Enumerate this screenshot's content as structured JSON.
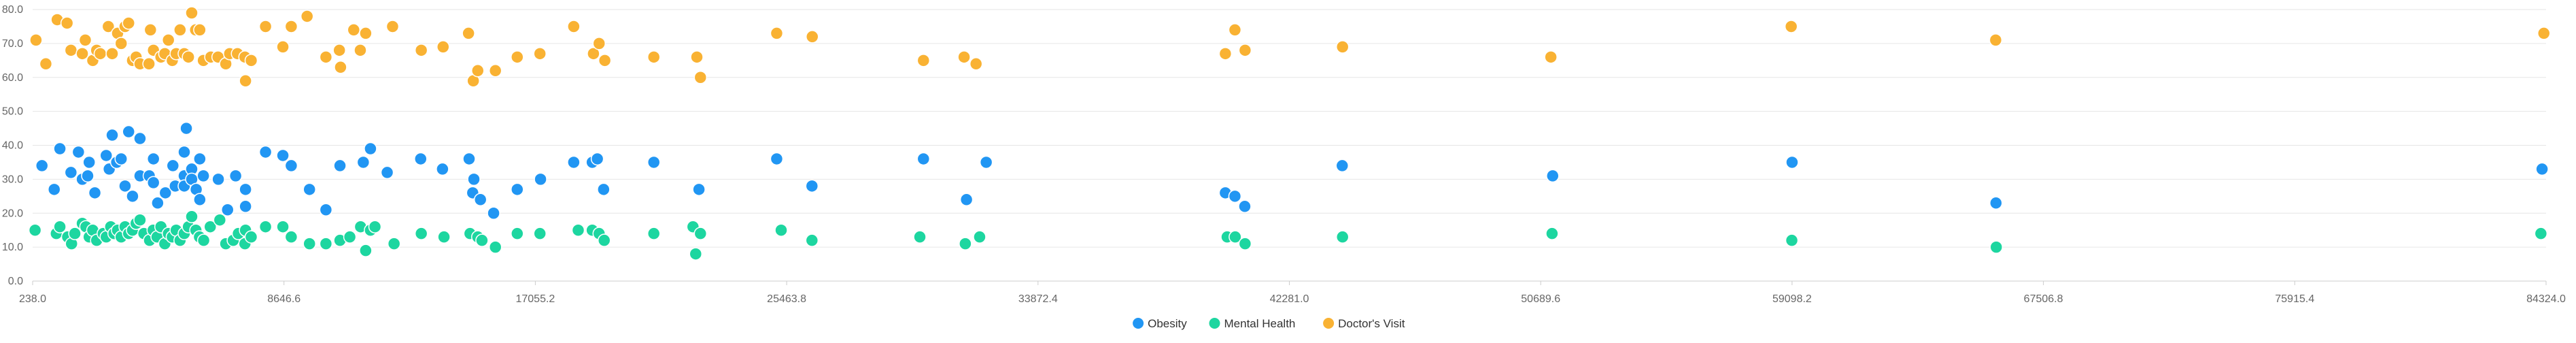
{
  "chart_data": {
    "type": "scatter",
    "title": "",
    "xlabel": "",
    "ylabel": "",
    "xlim": [
      238.0,
      84324.0
    ],
    "ylim": [
      0.0,
      80.0
    ],
    "x_ticks": [
      "238.0",
      "8646.6",
      "17055.2",
      "25463.8",
      "33872.4",
      "42281.0",
      "50689.6",
      "59098.2",
      "67506.8",
      "75915.4",
      "84324.0"
    ],
    "y_ticks": [
      "0.0",
      "10.0",
      "20.0",
      "30.0",
      "40.0",
      "50.0",
      "60.0",
      "70.0",
      "80.0"
    ],
    "grid": "horizontal",
    "legend_position": "bottom-center",
    "series": [
      {
        "name": "Obesity",
        "color": "#2196f3",
        "points": [
          [
            550,
            34
          ],
          [
            960,
            27
          ],
          [
            1150,
            39
          ],
          [
            1520,
            32
          ],
          [
            1900,
            30
          ],
          [
            1770,
            38
          ],
          [
            2130,
            35
          ],
          [
            2080,
            31
          ],
          [
            2320,
            26
          ],
          [
            2700,
            37
          ],
          [
            2800,
            33
          ],
          [
            3050,
            35
          ],
          [
            2900,
            43
          ],
          [
            3200,
            36
          ],
          [
            3330,
            28
          ],
          [
            3450,
            44
          ],
          [
            3580,
            25
          ],
          [
            3830,
            42
          ],
          [
            3830,
            31
          ],
          [
            4140,
            31
          ],
          [
            4280,
            36
          ],
          [
            4280,
            29
          ],
          [
            4420,
            23
          ],
          [
            4680,
            26
          ],
          [
            4930,
            34
          ],
          [
            5010,
            28
          ],
          [
            5310,
            38
          ],
          [
            5310,
            31
          ],
          [
            5310,
            28
          ],
          [
            5380,
            45
          ],
          [
            5560,
            33
          ],
          [
            5560,
            30
          ],
          [
            5710,
            27
          ],
          [
            5830,
            36
          ],
          [
            5950,
            31
          ],
          [
            5830,
            24
          ],
          [
            6450,
            30
          ],
          [
            6760,
            21
          ],
          [
            7030,
            31
          ],
          [
            7360,
            22
          ],
          [
            7360,
            27
          ],
          [
            8030,
            38
          ],
          [
            8610,
            37
          ],
          [
            8890,
            34
          ],
          [
            9500,
            27
          ],
          [
            10050,
            21
          ],
          [
            10520,
            34
          ],
          [
            11300,
            35
          ],
          [
            11540,
            39
          ],
          [
            12100,
            32
          ],
          [
            13220,
            36
          ],
          [
            13950,
            33
          ],
          [
            14840,
            36
          ],
          [
            14960,
            26
          ],
          [
            15000,
            30
          ],
          [
            15220,
            24
          ],
          [
            15660,
            20
          ],
          [
            16450,
            27
          ],
          [
            17230,
            30
          ],
          [
            18340,
            35
          ],
          [
            18960,
            35
          ],
          [
            19130,
            36
          ],
          [
            19340,
            27
          ],
          [
            21020,
            35
          ],
          [
            22530,
            27
          ],
          [
            25130,
            36
          ],
          [
            26310,
            28
          ],
          [
            30040,
            36
          ],
          [
            31480,
            24
          ],
          [
            32140,
            35
          ],
          [
            40140,
            26
          ],
          [
            40460,
            25
          ],
          [
            40790,
            22
          ],
          [
            44050,
            34
          ],
          [
            51090,
            31
          ],
          [
            59100,
            35
          ],
          [
            65920,
            23
          ],
          [
            84190,
            33
          ]
        ]
      },
      {
        "name": "Mental Health",
        "color": "#1dd6a0",
        "points": [
          [
            320,
            15
          ],
          [
            1030,
            14
          ],
          [
            1150,
            16
          ],
          [
            1410,
            13
          ],
          [
            1540,
            11
          ],
          [
            1650,
            14
          ],
          [
            1900,
            17
          ],
          [
            2020,
            16
          ],
          [
            2130,
            13
          ],
          [
            2250,
            15
          ],
          [
            2380,
            12
          ],
          [
            2600,
            14
          ],
          [
            2700,
            13
          ],
          [
            2850,
            16
          ],
          [
            2960,
            14
          ],
          [
            3080,
            15
          ],
          [
            3200,
            13
          ],
          [
            3330,
            16
          ],
          [
            3450,
            14
          ],
          [
            3580,
            15
          ],
          [
            3700,
            17
          ],
          [
            3830,
            18
          ],
          [
            3960,
            14
          ],
          [
            4150,
            12
          ],
          [
            4270,
            15
          ],
          [
            4400,
            13
          ],
          [
            4530,
            16
          ],
          [
            4660,
            11
          ],
          [
            4780,
            14
          ],
          [
            4910,
            13
          ],
          [
            5040,
            15
          ],
          [
            5170,
            12
          ],
          [
            5310,
            14
          ],
          [
            5450,
            16
          ],
          [
            5560,
            19
          ],
          [
            5700,
            15
          ],
          [
            5820,
            13
          ],
          [
            5960,
            12
          ],
          [
            6180,
            16
          ],
          [
            6500,
            18
          ],
          [
            6700,
            11
          ],
          [
            6950,
            12
          ],
          [
            7120,
            14
          ],
          [
            7340,
            11
          ],
          [
            7360,
            15
          ],
          [
            7550,
            13
          ],
          [
            8030,
            16
          ],
          [
            8610,
            16
          ],
          [
            8890,
            13
          ],
          [
            9500,
            11
          ],
          [
            10050,
            11
          ],
          [
            10520,
            12
          ],
          [
            10850,
            13
          ],
          [
            11210,
            16
          ],
          [
            11380,
            9
          ],
          [
            11540,
            15
          ],
          [
            11690,
            16
          ],
          [
            12330,
            11
          ],
          [
            13240,
            14
          ],
          [
            14000,
            13
          ],
          [
            14870,
            14
          ],
          [
            15130,
            13
          ],
          [
            15270,
            12
          ],
          [
            15720,
            10
          ],
          [
            16450,
            14
          ],
          [
            17210,
            14
          ],
          [
            18490,
            15
          ],
          [
            18960,
            15
          ],
          [
            19190,
            14
          ],
          [
            19360,
            12
          ],
          [
            21020,
            14
          ],
          [
            22330,
            16
          ],
          [
            22420,
            8
          ],
          [
            22580,
            14
          ],
          [
            25280,
            15
          ],
          [
            26310,
            12
          ],
          [
            29920,
            13
          ],
          [
            31440,
            11
          ],
          [
            31920,
            13
          ],
          [
            40200,
            13
          ],
          [
            40470,
            13
          ],
          [
            40800,
            11
          ],
          [
            44060,
            13
          ],
          [
            51070,
            14
          ],
          [
            59090,
            12
          ],
          [
            65930,
            10
          ],
          [
            84150,
            14
          ]
        ]
      },
      {
        "name": "Doctor's Visit",
        "color": "#f9b233",
        "points": [
          [
            350,
            71
          ],
          [
            680,
            64
          ],
          [
            1060,
            77
          ],
          [
            1390,
            76
          ],
          [
            1520,
            68
          ],
          [
            1900,
            67
          ],
          [
            2000,
            71
          ],
          [
            2250,
            65
          ],
          [
            2380,
            68
          ],
          [
            2500,
            67
          ],
          [
            2770,
            75
          ],
          [
            2900,
            67
          ],
          [
            3080,
            73
          ],
          [
            3200,
            70
          ],
          [
            3330,
            75
          ],
          [
            3450,
            76
          ],
          [
            3580,
            65
          ],
          [
            3700,
            66
          ],
          [
            3830,
            64
          ],
          [
            4130,
            64
          ],
          [
            4180,
            74
          ],
          [
            4280,
            68
          ],
          [
            4530,
            66
          ],
          [
            4660,
            67
          ],
          [
            4780,
            71
          ],
          [
            4910,
            65
          ],
          [
            5040,
            67
          ],
          [
            5170,
            74
          ],
          [
            5310,
            67
          ],
          [
            5450,
            66
          ],
          [
            5560,
            79
          ],
          [
            5690,
            74
          ],
          [
            5830,
            74
          ],
          [
            5950,
            65
          ],
          [
            6200,
            66
          ],
          [
            6440,
            66
          ],
          [
            6700,
            64
          ],
          [
            6830,
            67
          ],
          [
            7090,
            67
          ],
          [
            7340,
            66
          ],
          [
            7360,
            59
          ],
          [
            7550,
            65
          ],
          [
            8030,
            75
          ],
          [
            8610,
            69
          ],
          [
            8890,
            75
          ],
          [
            9420,
            78
          ],
          [
            10050,
            66
          ],
          [
            10500,
            68
          ],
          [
            10540,
            63
          ],
          [
            10980,
            74
          ],
          [
            11200,
            68
          ],
          [
            11380,
            73
          ],
          [
            12280,
            75
          ],
          [
            13240,
            68
          ],
          [
            13970,
            69
          ],
          [
            14820,
            73
          ],
          [
            14980,
            59
          ],
          [
            15130,
            62
          ],
          [
            15720,
            62
          ],
          [
            16450,
            66
          ],
          [
            17210,
            67
          ],
          [
            18340,
            75
          ],
          [
            19000,
            67
          ],
          [
            19190,
            70
          ],
          [
            19380,
            65
          ],
          [
            21020,
            66
          ],
          [
            22460,
            66
          ],
          [
            22580,
            60
          ],
          [
            25130,
            73
          ],
          [
            26320,
            72
          ],
          [
            30040,
            65
          ],
          [
            31400,
            66
          ],
          [
            31800,
            64
          ],
          [
            40140,
            67
          ],
          [
            40460,
            74
          ],
          [
            40800,
            68
          ],
          [
            44060,
            69
          ],
          [
            51030,
            66
          ],
          [
            59070,
            75
          ],
          [
            65910,
            71
          ],
          [
            84250,
            73
          ]
        ]
      }
    ]
  }
}
